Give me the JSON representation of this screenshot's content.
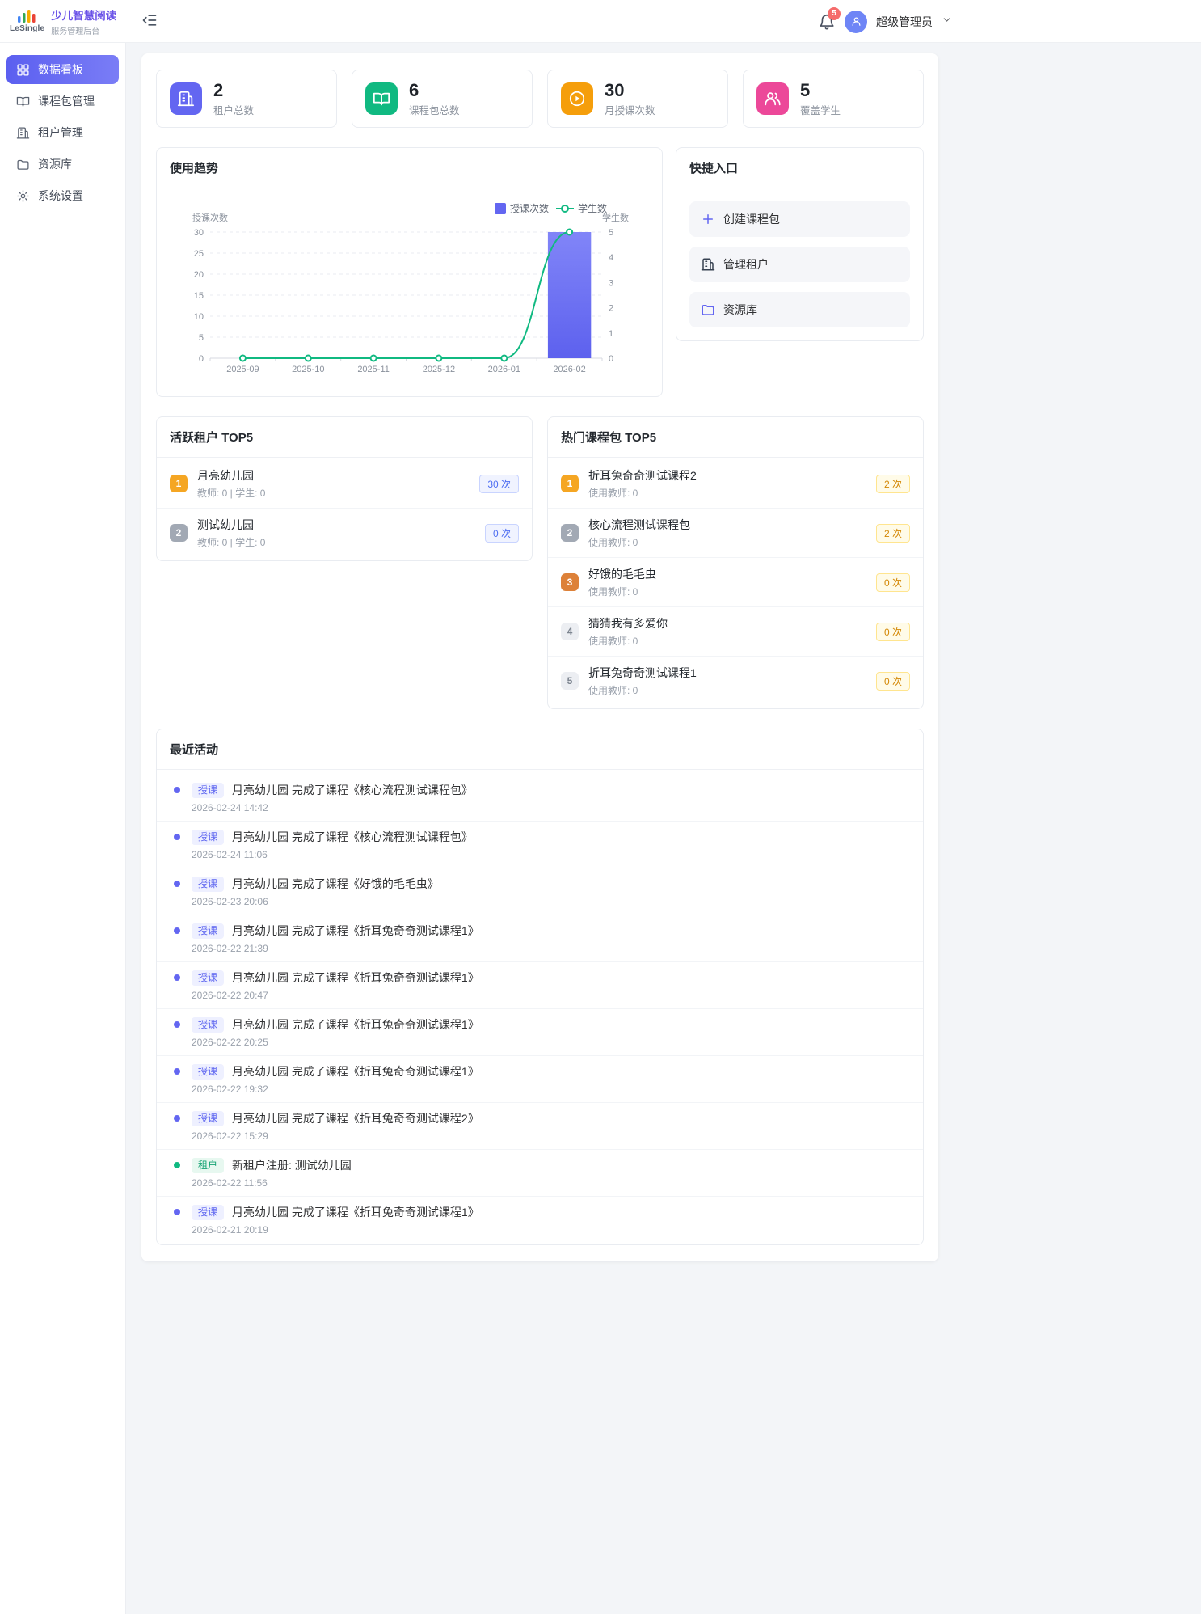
{
  "header": {
    "logo_text": "LeSingle",
    "app_title": "少儿智慧阅读",
    "app_subtitle": "服务管理后台",
    "notification_count": "5",
    "user_name": "超级管理员"
  },
  "colors": {
    "primary": "#6366f1",
    "success": "#10b981",
    "warning": "#f59e0b",
    "pink": "#ec4899",
    "danger": "#f56c6c"
  },
  "sidebar": {
    "items": [
      {
        "key": "dashboard",
        "label": "数据看板",
        "icon": "dashboard-icon",
        "active": true
      },
      {
        "key": "course-packages",
        "label": "课程包管理",
        "icon": "book-icon",
        "active": false
      },
      {
        "key": "tenants",
        "label": "租户管理",
        "icon": "building-icon",
        "active": false
      },
      {
        "key": "resources",
        "label": "资源库",
        "icon": "folder-icon",
        "active": false
      },
      {
        "key": "settings",
        "label": "系统设置",
        "icon": "gear-icon",
        "active": false
      }
    ]
  },
  "stats": [
    {
      "key": "tenants",
      "value": "2",
      "label": "租户总数",
      "icon": "building-icon",
      "color": "#6366f1"
    },
    {
      "key": "packages",
      "value": "6",
      "label": "课程包总数",
      "icon": "book-icon",
      "color": "#10b981"
    },
    {
      "key": "monthly-lessons",
      "value": "30",
      "label": "月授课次数",
      "icon": "play-icon",
      "color": "#f59e0b"
    },
    {
      "key": "students",
      "value": "5",
      "label": "覆盖学生",
      "icon": "students-icon",
      "color": "#ec4899"
    }
  ],
  "usage_trend": {
    "title": "使用趋势"
  },
  "chart_data": {
    "type": "bar",
    "title": "使用趋势",
    "categories": [
      "2025-09",
      "2025-10",
      "2025-11",
      "2025-12",
      "2026-01",
      "2026-02"
    ],
    "series": [
      {
        "name": "授课次数",
        "type": "bar",
        "axis": "left",
        "color": "#6366f1",
        "values": [
          0,
          0,
          0,
          0,
          0,
          30
        ]
      },
      {
        "name": "学生数",
        "type": "line",
        "axis": "right",
        "color": "#10b981",
        "values": [
          0,
          0,
          0,
          0,
          0,
          5
        ]
      }
    ],
    "left_axis": {
      "name": "授课次数",
      "min": 0,
      "max": 30,
      "tick_step": 5
    },
    "right_axis": {
      "name": "学生数",
      "min": 0,
      "max": 5,
      "tick_step": 1
    },
    "legend": [
      "授课次数",
      "学生数"
    ],
    "legend_position": "top-right",
    "grid": true
  },
  "quick_entry": {
    "title": "快捷入口",
    "items": [
      {
        "key": "create-package",
        "label": "创建课程包",
        "icon": "plus-icon",
        "icon_color": "#6366f1"
      },
      {
        "key": "manage-tenants",
        "label": "管理租户",
        "icon": "building-icon",
        "icon_color": "#374151"
      },
      {
        "key": "resource-library",
        "label": "资源库",
        "icon": "folder-icon",
        "icon_color": "#6366f1"
      }
    ]
  },
  "active_tenants": {
    "title": "活跃租户 TOP5",
    "items": [
      {
        "rank": "1",
        "name": "月亮幼儿园",
        "meta": "教师: 0 | 学生: 0",
        "badge": "30 次"
      },
      {
        "rank": "2",
        "name": "测试幼儿园",
        "meta": "教师: 0 | 学生: 0",
        "badge": "0 次"
      }
    ]
  },
  "hot_packages": {
    "title": "热门课程包 TOP5",
    "items": [
      {
        "rank": "1",
        "name": "折耳兔奇奇测试课程2",
        "meta": "使用教师: 0",
        "badge": "2 次"
      },
      {
        "rank": "2",
        "name": "核心流程测试课程包",
        "meta": "使用教师: 0",
        "badge": "2 次"
      },
      {
        "rank": "3",
        "name": "好饿的毛毛虫",
        "meta": "使用教师: 0",
        "badge": "0 次"
      },
      {
        "rank": "4",
        "name": "猜猜我有多爱你",
        "meta": "使用教师: 0",
        "badge": "0 次"
      },
      {
        "rank": "5",
        "name": "折耳兔奇奇测试课程1",
        "meta": "使用教师: 0",
        "badge": "0 次"
      }
    ]
  },
  "recent_activity": {
    "title": "最近活动",
    "items": [
      {
        "type": "lesson",
        "tag": "授课",
        "text": "月亮幼儿园 完成了课程《核心流程测试课程包》",
        "time": "2026-02-24 14:42"
      },
      {
        "type": "lesson",
        "tag": "授课",
        "text": "月亮幼儿园 完成了课程《核心流程测试课程包》",
        "time": "2026-02-24 11:06"
      },
      {
        "type": "lesson",
        "tag": "授课",
        "text": "月亮幼儿园 完成了课程《好饿的毛毛虫》",
        "time": "2026-02-23 20:06"
      },
      {
        "type": "lesson",
        "tag": "授课",
        "text": "月亮幼儿园 完成了课程《折耳兔奇奇测试课程1》",
        "time": "2026-02-22 21:39"
      },
      {
        "type": "lesson",
        "tag": "授课",
        "text": "月亮幼儿园 完成了课程《折耳兔奇奇测试课程1》",
        "time": "2026-02-22 20:47"
      },
      {
        "type": "lesson",
        "tag": "授课",
        "text": "月亮幼儿园 完成了课程《折耳兔奇奇测试课程1》",
        "time": "2026-02-22 20:25"
      },
      {
        "type": "lesson",
        "tag": "授课",
        "text": "月亮幼儿园 完成了课程《折耳兔奇奇测试课程1》",
        "time": "2026-02-22 19:32"
      },
      {
        "type": "lesson",
        "tag": "授课",
        "text": "月亮幼儿园 完成了课程《折耳兔奇奇测试课程2》",
        "time": "2026-02-22 15:29"
      },
      {
        "type": "tenant",
        "tag": "租户",
        "text": "新租户注册: 测试幼儿园",
        "time": "2026-02-22 11:56"
      },
      {
        "type": "lesson",
        "tag": "授课",
        "text": "月亮幼儿园 完成了课程《折耳兔奇奇测试课程1》",
        "time": "2026-02-21 20:19"
      }
    ]
  }
}
